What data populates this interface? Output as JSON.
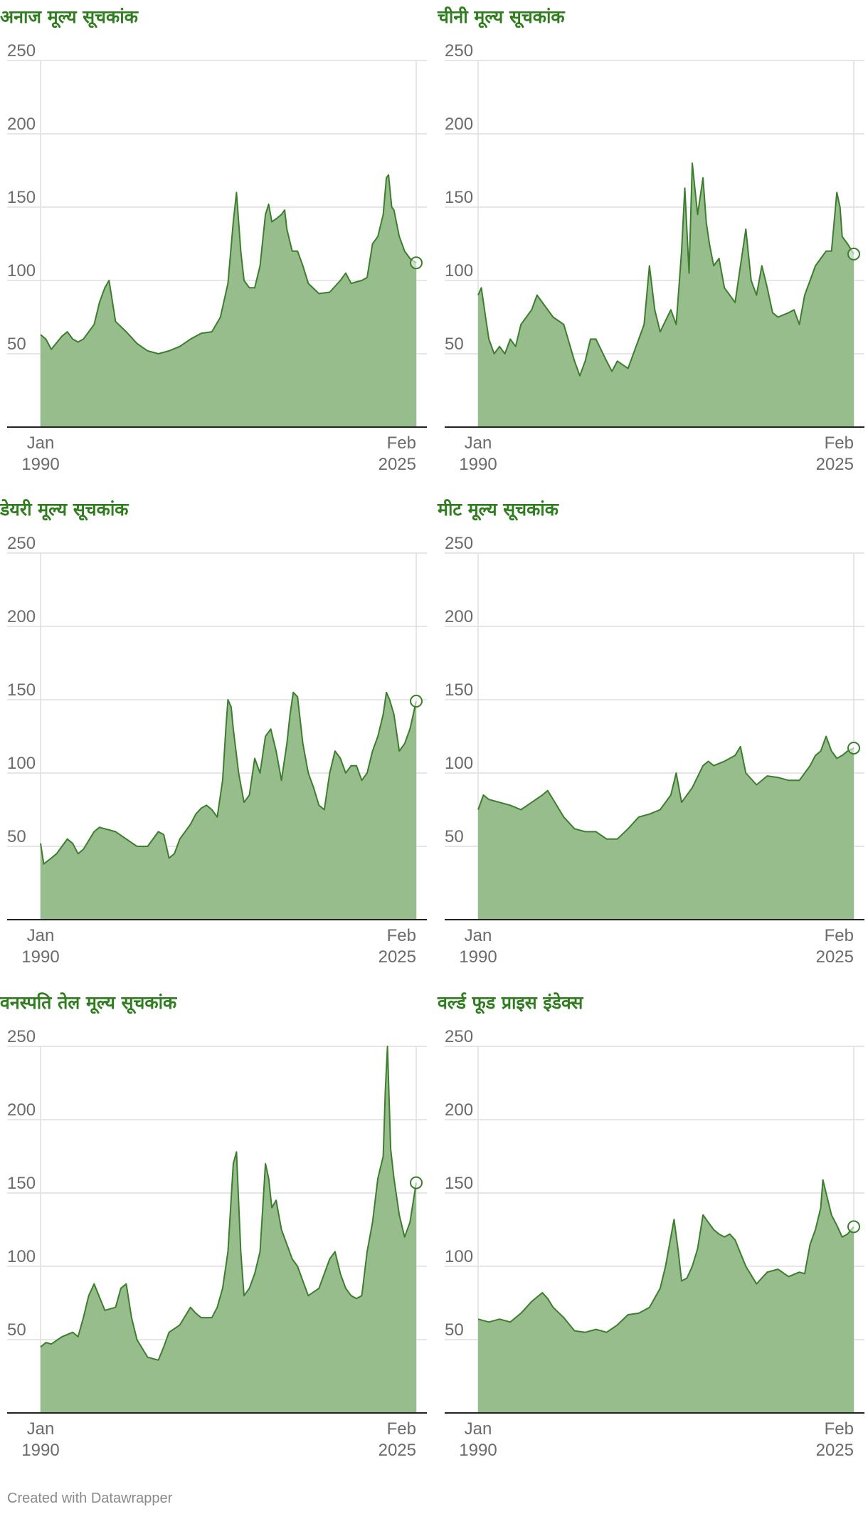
{
  "footer": "Created with Datawrapper",
  "colors": {
    "title": "#2f7d1f",
    "line": "#3d7e2e",
    "area": "#96bd8b",
    "grid": "#dedede",
    "axis": "#222222",
    "text": "#6b6b6b"
  },
  "chart_data": [
    {
      "type": "area",
      "title": "अनाज मूल्य सूचकांक",
      "x_labels": [
        [
          "Jan",
          "1990"
        ],
        [
          "Feb",
          "2025"
        ]
      ],
      "y_ticks": [
        50,
        100,
        150,
        200,
        250
      ],
      "ylim": [
        0,
        250
      ],
      "xlim": [
        1990.0,
        2025.083
      ],
      "grid": true,
      "x": [
        1990.0,
        1990.5,
        1991.0,
        1992.0,
        1992.5,
        1993.0,
        1993.5,
        1994.0,
        1995.0,
        1995.5,
        1996.0,
        1996.4,
        1997.0,
        1998.0,
        1999.0,
        2000.0,
        2001.0,
        2002.0,
        2003.0,
        2004.0,
        2005.0,
        2006.0,
        2006.8,
        2007.5,
        2008.0,
        2008.3,
        2008.7,
        2009.0,
        2009.5,
        2010.0,
        2010.5,
        2011.0,
        2011.3,
        2011.6,
        2012.0,
        2012.5,
        2012.8,
        2013.0,
        2013.5,
        2014.0,
        2014.5,
        2015.0,
        2016.0,
        2017.0,
        2018.0,
        2018.5,
        2019.0,
        2020.0,
        2020.5,
        2021.0,
        2021.5,
        2022.0,
        2022.3,
        2022.5,
        2022.8,
        2023.0,
        2023.5,
        2024.0,
        2024.5,
        2025.083
      ],
      "values": [
        63,
        60,
        53,
        62,
        65,
        60,
        58,
        60,
        70,
        85,
        95,
        100,
        72,
        65,
        57,
        52,
        50,
        52,
        55,
        60,
        64,
        65,
        75,
        98,
        140,
        160,
        120,
        100,
        95,
        95,
        110,
        145,
        152,
        140,
        142,
        145,
        148,
        135,
        120,
        120,
        110,
        98,
        91,
        92,
        100,
        105,
        98,
        100,
        102,
        125,
        130,
        145,
        170,
        172,
        150,
        148,
        130,
        120,
        115,
        112
      ]
    },
    {
      "type": "area",
      "title": "चीनी मूल्य सूचकांक",
      "x_labels": [
        [
          "Jan",
          "1990"
        ],
        [
          "Feb",
          "2025"
        ]
      ],
      "y_ticks": [
        50,
        100,
        150,
        200,
        250
      ],
      "ylim": [
        0,
        250
      ],
      "xlim": [
        1990.0,
        2025.083
      ],
      "grid": true,
      "x": [
        1990.0,
        1990.3,
        1990.7,
        1991.0,
        1991.5,
        1992.0,
        1992.5,
        1993.0,
        1993.5,
        1994.0,
        1995.0,
        1995.5,
        1996.0,
        1997.0,
        1998.0,
        1999.0,
        1999.5,
        2000.0,
        2000.5,
        2001.0,
        2002.0,
        2002.5,
        2003.0,
        2004.0,
        2005.0,
        2005.5,
        2006.0,
        2006.5,
        2007.0,
        2008.0,
        2008.5,
        2009.0,
        2009.3,
        2009.7,
        2010.0,
        2010.5,
        2011.0,
        2011.3,
        2011.6,
        2012.0,
        2012.5,
        2013.0,
        2014.0,
        2015.0,
        2015.5,
        2016.0,
        2016.5,
        2017.0,
        2017.5,
        2018.0,
        2019.0,
        2019.5,
        2020.0,
        2020.5,
        2021.0,
        2021.5,
        2022.0,
        2022.5,
        2023.0,
        2023.5,
        2023.8,
        2024.0,
        2024.5,
        2025.083
      ],
      "values": [
        90,
        95,
        75,
        60,
        50,
        55,
        50,
        60,
        55,
        70,
        80,
        90,
        85,
        75,
        70,
        45,
        35,
        45,
        60,
        60,
        45,
        38,
        45,
        40,
        60,
        70,
        110,
        80,
        65,
        80,
        70,
        120,
        163,
        105,
        180,
        145,
        170,
        140,
        125,
        110,
        115,
        95,
        85,
        135,
        100,
        90,
        110,
        95,
        78,
        75,
        78,
        80,
        70,
        90,
        100,
        110,
        115,
        120,
        120,
        160,
        150,
        130,
        125,
        118
      ]
    },
    {
      "type": "area",
      "title": "डेयरी मूल्य सूचकांक",
      "x_labels": [
        [
          "Jan",
          "1990"
        ],
        [
          "Feb",
          "2025"
        ]
      ],
      "y_ticks": [
        50,
        100,
        150,
        200,
        250
      ],
      "ylim": [
        0,
        250
      ],
      "xlim": [
        1990.0,
        2025.083
      ],
      "grid": true,
      "x": [
        1990.0,
        1990.3,
        1991.0,
        1991.5,
        1992.0,
        1992.5,
        1993.0,
        1993.5,
        1994.0,
        1995.0,
        1995.5,
        1996.0,
        1997.0,
        1998.0,
        1999.0,
        2000.0,
        2001.0,
        2001.5,
        2002.0,
        2002.5,
        2003.0,
        2004.0,
        2004.5,
        2005.0,
        2005.5,
        2006.0,
        2006.5,
        2007.0,
        2007.3,
        2007.5,
        2007.8,
        2008.0,
        2008.5,
        2009.0,
        2009.5,
        2010.0,
        2010.5,
        2011.0,
        2011.5,
        2012.0,
        2012.5,
        2013.0,
        2013.3,
        2013.6,
        2014.0,
        2014.5,
        2015.0,
        2015.5,
        2016.0,
        2016.5,
        2017.0,
        2017.5,
        2018.0,
        2018.5,
        2019.0,
        2019.5,
        2020.0,
        2020.5,
        2021.0,
        2021.5,
        2022.0,
        2022.3,
        2022.6,
        2023.0,
        2023.5,
        2024.0,
        2024.5,
        2025.083
      ],
      "values": [
        52,
        38,
        42,
        45,
        50,
        55,
        52,
        45,
        48,
        60,
        63,
        62,
        60,
        55,
        50,
        50,
        60,
        58,
        42,
        45,
        55,
        65,
        72,
        76,
        78,
        75,
        70,
        95,
        130,
        150,
        145,
        130,
        100,
        80,
        85,
        110,
        100,
        125,
        130,
        115,
        95,
        120,
        140,
        155,
        152,
        120,
        100,
        90,
        78,
        75,
        100,
        115,
        110,
        100,
        105,
        105,
        95,
        100,
        115,
        125,
        140,
        155,
        150,
        140,
        115,
        120,
        130,
        149
      ]
    },
    {
      "type": "area",
      "title": "मीट मूल्य सूचकांक",
      "x_labels": [
        [
          "Jan",
          "1990"
        ],
        [
          "Feb",
          "2025"
        ]
      ],
      "y_ticks": [
        50,
        100,
        150,
        200,
        250
      ],
      "ylim": [
        0,
        250
      ],
      "xlim": [
        1990.0,
        2025.083
      ],
      "grid": true,
      "x": [
        1990.0,
        1990.5,
        1991.0,
        1992.0,
        1993.0,
        1994.0,
        1995.0,
        1996.0,
        1996.5,
        1997.0,
        1998.0,
        1999.0,
        2000.0,
        2001.0,
        2002.0,
        2003.0,
        2004.0,
        2005.0,
        2006.0,
        2007.0,
        2008.0,
        2008.5,
        2009.0,
        2010.0,
        2011.0,
        2011.5,
        2012.0,
        2013.0,
        2014.0,
        2014.5,
        2015.0,
        2016.0,
        2017.0,
        2018.0,
        2019.0,
        2020.0,
        2021.0,
        2021.5,
        2022.0,
        2022.5,
        2023.0,
        2023.5,
        2024.0,
        2024.5,
        2025.083
      ],
      "values": [
        75,
        85,
        82,
        80,
        78,
        75,
        80,
        85,
        88,
        82,
        70,
        62,
        60,
        60,
        55,
        55,
        62,
        70,
        72,
        75,
        85,
        100,
        80,
        90,
        105,
        108,
        105,
        108,
        112,
        118,
        100,
        92,
        98,
        97,
        95,
        95,
        105,
        112,
        115,
        125,
        115,
        110,
        112,
        115,
        117
      ]
    },
    {
      "type": "area",
      "title": "वनस्पति तेल मूल्य सूचकांक",
      "x_labels": [
        [
          "Jan",
          "1990"
        ],
        [
          "Feb",
          "2025"
        ]
      ],
      "y_ticks": [
        50,
        100,
        150,
        200,
        250
      ],
      "ylim": [
        0,
        250
      ],
      "xlim": [
        1990.0,
        2025.083
      ],
      "grid": true,
      "x": [
        1990.0,
        1990.5,
        1991.0,
        1992.0,
        1993.0,
        1993.5,
        1994.0,
        1994.5,
        1995.0,
        1996.0,
        1997.0,
        1997.5,
        1998.0,
        1998.5,
        1999.0,
        2000.0,
        2001.0,
        2001.5,
        2002.0,
        2003.0,
        2004.0,
        2004.5,
        2005.0,
        2006.0,
        2006.5,
        2007.0,
        2007.5,
        2008.0,
        2008.3,
        2008.7,
        2009.0,
        2009.5,
        2010.0,
        2010.5,
        2011.0,
        2011.3,
        2011.6,
        2012.0,
        2012.5,
        2013.0,
        2013.5,
        2014.0,
        2014.5,
        2015.0,
        2016.0,
        2017.0,
        2017.5,
        2018.0,
        2018.5,
        2019.0,
        2019.5,
        2020.0,
        2020.5,
        2021.0,
        2021.5,
        2022.0,
        2022.2,
        2022.4,
        2022.7,
        2023.0,
        2023.5,
        2024.0,
        2024.5,
        2025.083
      ],
      "values": [
        45,
        48,
        47,
        52,
        55,
        52,
        65,
        80,
        88,
        70,
        72,
        85,
        88,
        65,
        50,
        38,
        36,
        45,
        55,
        60,
        72,
        68,
        65,
        65,
        72,
        85,
        110,
        170,
        178,
        110,
        80,
        85,
        95,
        110,
        170,
        160,
        140,
        145,
        125,
        115,
        105,
        100,
        90,
        80,
        85,
        105,
        110,
        95,
        85,
        80,
        78,
        80,
        110,
        130,
        160,
        175,
        220,
        250,
        180,
        160,
        135,
        120,
        130,
        157
      ]
    },
    {
      "type": "area",
      "title": "वर्ल्ड फूड प्राइस इंडेक्स",
      "x_labels": [
        [
          "Jan",
          "1990"
        ],
        [
          "Feb",
          "2025"
        ]
      ],
      "y_ticks": [
        50,
        100,
        150,
        200,
        250
      ],
      "ylim": [
        0,
        250
      ],
      "xlim": [
        1990.0,
        2025.083
      ],
      "grid": true,
      "x": [
        1990.0,
        1991.0,
        1992.0,
        1993.0,
        1994.0,
        1995.0,
        1996.0,
        1996.5,
        1997.0,
        1998.0,
        1999.0,
        2000.0,
        2001.0,
        2002.0,
        2003.0,
        2004.0,
        2005.0,
        2006.0,
        2007.0,
        2007.5,
        2008.0,
        2008.3,
        2008.7,
        2009.0,
        2009.5,
        2010.0,
        2010.5,
        2011.0,
        2011.5,
        2012.0,
        2012.5,
        2013.0,
        2013.5,
        2014.0,
        2015.0,
        2016.0,
        2017.0,
        2018.0,
        2019.0,
        2020.0,
        2020.5,
        2021.0,
        2021.5,
        2022.0,
        2022.2,
        2022.5,
        2023.0,
        2023.5,
        2024.0,
        2024.5,
        2025.083
      ],
      "values": [
        64,
        62,
        64,
        62,
        68,
        76,
        82,
        78,
        72,
        65,
        56,
        55,
        57,
        55,
        60,
        67,
        68,
        72,
        85,
        100,
        120,
        132,
        110,
        90,
        92,
        100,
        112,
        135,
        130,
        125,
        122,
        120,
        122,
        118,
        100,
        88,
        96,
        98,
        93,
        96,
        95,
        115,
        125,
        140,
        159,
        150,
        135,
        128,
        120,
        122,
        127
      ]
    }
  ]
}
